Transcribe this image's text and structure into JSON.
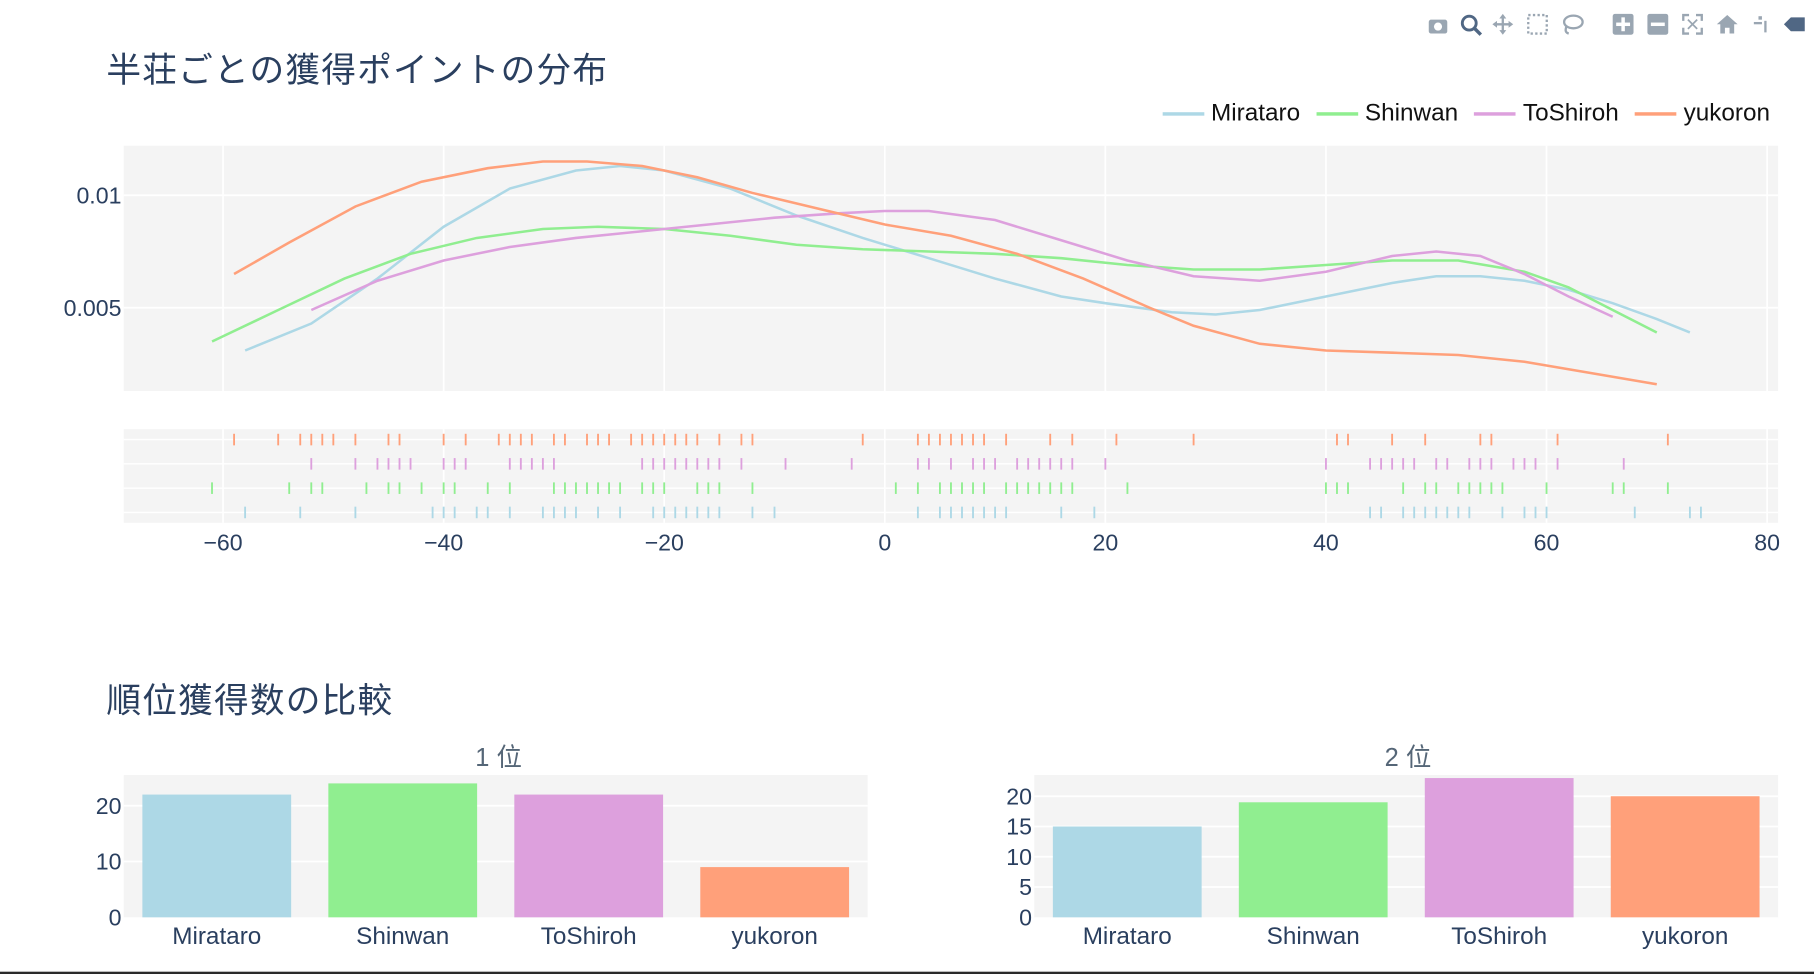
{
  "title1": "半荘ごとの獲得ポイントの分布",
  "title2": "順位獲得数の比較",
  "players": [
    "Mirataro",
    "Shinwan",
    "ToShiroh",
    "yukoron"
  ],
  "colors": {
    "Mirataro": "#add8e6",
    "Shinwan": "#90ee90",
    "ToShiroh": "#dda0dd",
    "yukoron": "#ffa07a"
  },
  "modebar_icons": [
    "camera-icon",
    "zoom-icon",
    "pan-icon",
    "box-select-icon",
    "lasso-icon",
    "zoom-in-icon",
    "zoom-out-icon",
    "autoscale-icon",
    "reset-axes-icon",
    "spike-lines-icon",
    "hover-closest-icon"
  ],
  "chart_data": [
    {
      "type": "line",
      "title": "半荘ごとの獲得ポイントの分布",
      "xlim": [
        -69,
        81
      ],
      "ylim": [
        0.0013,
        0.0122
      ],
      "xticks": [
        -60,
        -40,
        -20,
        0,
        20,
        40,
        60,
        80
      ],
      "xtick_labels": [
        "−60",
        "−40",
        "−20",
        "0",
        "20",
        "40",
        "60",
        "80"
      ],
      "yticks": [
        0.005,
        0.01
      ],
      "ytick_labels": [
        "0.005",
        "0.01"
      ],
      "grid": true,
      "legend_placement": "top-right",
      "series": [
        {
          "name": "Mirataro",
          "x": [
            -58,
            -52,
            -46,
            -40,
            -34,
            -28,
            -24,
            -20,
            -14,
            -8,
            -2,
            4,
            10,
            16,
            20,
            26,
            30,
            34,
            40,
            46,
            50,
            54,
            58,
            62,
            66,
            70,
            73
          ],
          "y": [
            0.0031,
            0.0043,
            0.0063,
            0.0086,
            0.0103,
            0.0111,
            0.0113,
            0.0111,
            0.0103,
            0.0091,
            0.0081,
            0.0072,
            0.0063,
            0.0055,
            0.0052,
            0.0048,
            0.0047,
            0.0049,
            0.0055,
            0.0061,
            0.0064,
            0.0064,
            0.0062,
            0.0058,
            0.0052,
            0.0045,
            0.0039
          ]
        },
        {
          "name": "Shinwan",
          "x": [
            -61,
            -55,
            -49,
            -43,
            -37,
            -31,
            -26,
            -20,
            -14,
            -8,
            -2,
            4,
            10,
            16,
            22,
            28,
            34,
            40,
            46,
            52,
            58,
            62,
            66,
            70
          ],
          "y": [
            0.0035,
            0.0049,
            0.0063,
            0.0074,
            0.0081,
            0.0085,
            0.0086,
            0.0085,
            0.0082,
            0.0078,
            0.0076,
            0.0075,
            0.0074,
            0.0072,
            0.0069,
            0.0067,
            0.0067,
            0.0069,
            0.0071,
            0.0071,
            0.0066,
            0.0059,
            0.0049,
            0.0039
          ]
        },
        {
          "name": "ToShiroh",
          "x": [
            -52,
            -46,
            -40,
            -34,
            -28,
            -22,
            -16,
            -10,
            -4,
            0,
            4,
            10,
            16,
            22,
            28,
            34,
            40,
            46,
            50,
            54,
            58,
            62,
            66
          ],
          "y": [
            0.0049,
            0.0062,
            0.0071,
            0.0077,
            0.0081,
            0.0084,
            0.0087,
            0.009,
            0.0092,
            0.0093,
            0.0093,
            0.0089,
            0.008,
            0.0071,
            0.0064,
            0.0062,
            0.0066,
            0.0073,
            0.0075,
            0.0073,
            0.0065,
            0.0055,
            0.0046
          ]
        },
        {
          "name": "yukoron",
          "x": [
            -59,
            -54,
            -48,
            -42,
            -36,
            -31,
            -27,
            -22,
            -17,
            -12,
            -6,
            0,
            6,
            12,
            18,
            24,
            28,
            34,
            40,
            46,
            52,
            58,
            64,
            70
          ],
          "y": [
            0.0065,
            0.0079,
            0.0095,
            0.0106,
            0.0112,
            0.0115,
            0.0115,
            0.0113,
            0.0108,
            0.0101,
            0.0094,
            0.0087,
            0.0082,
            0.0074,
            0.0063,
            0.005,
            0.0042,
            0.0034,
            0.0031,
            0.003,
            0.0029,
            0.0026,
            0.0021,
            0.0016
          ]
        }
      ],
      "rug": [
        {
          "name": "yukoron",
          "x": [
            -59,
            -55,
            -53,
            -52,
            -51,
            -50,
            -48,
            -45,
            -44,
            -40,
            -38,
            -35,
            -34,
            -33,
            -32,
            -30,
            -29,
            -27,
            -26,
            -25,
            -23,
            -22,
            -21,
            -20,
            -19,
            -18,
            -17,
            -15,
            -13,
            -12,
            -2,
            3,
            4,
            5,
            6,
            7,
            8,
            9,
            11,
            15,
            17,
            21,
            28,
            41,
            42,
            46,
            49,
            54,
            55,
            61,
            71
          ]
        },
        {
          "name": "ToShiroh",
          "x": [
            -52,
            -48,
            -46,
            -45,
            -44,
            -43,
            -40,
            -39,
            -38,
            -34,
            -33,
            -32,
            -31,
            -30,
            -22,
            -21,
            -20,
            -19,
            -18,
            -17,
            -16,
            -15,
            -13,
            -9,
            -3,
            3,
            4,
            6,
            8,
            9,
            10,
            12,
            13,
            14,
            15,
            16,
            17,
            20,
            40,
            44,
            45,
            46,
            47,
            48,
            50,
            51,
            53,
            54,
            55,
            57,
            58,
            59,
            61,
            67
          ]
        },
        {
          "name": "Shinwan",
          "x": [
            -61,
            -54,
            -52,
            -51,
            -47,
            -45,
            -44,
            -42,
            -40,
            -39,
            -36,
            -34,
            -30,
            -29,
            -28,
            -27,
            -26,
            -25,
            -24,
            -22,
            -21,
            -20,
            -17,
            -16,
            -15,
            -12,
            1,
            3,
            5,
            6,
            7,
            8,
            9,
            11,
            12,
            13,
            14,
            15,
            16,
            17,
            22,
            40,
            41,
            42,
            47,
            49,
            50,
            52,
            53,
            54,
            55,
            56,
            60,
            66,
            67,
            71
          ]
        },
        {
          "name": "Mirataro",
          "x": [
            -58,
            -53,
            -48,
            -41,
            -40,
            -39,
            -37,
            -36,
            -34,
            -31,
            -30,
            -29,
            -28,
            -26,
            -24,
            -21,
            -20,
            -19,
            -18,
            -17,
            -16,
            -15,
            -12,
            -10,
            3,
            5,
            6,
            7,
            8,
            9,
            10,
            11,
            16,
            19,
            44,
            45,
            47,
            48,
            49,
            50,
            51,
            52,
            53,
            56,
            58,
            59,
            60,
            68,
            73,
            74
          ]
        }
      ]
    },
    {
      "type": "bar",
      "title": "1 位",
      "categories": [
        "Mirataro",
        "Shinwan",
        "ToShiroh",
        "yukoron"
      ],
      "values": [
        22,
        24,
        22,
        9
      ],
      "ylim": [
        0,
        25.5
      ],
      "yticks": [
        0,
        10,
        20
      ]
    },
    {
      "type": "bar",
      "title": "2 位",
      "categories": [
        "Mirataro",
        "Shinwan",
        "ToShiroh",
        "yukoron"
      ],
      "values": [
        15,
        19,
        23,
        20
      ],
      "ylim": [
        0,
        23.5
      ],
      "yticks": [
        0,
        5,
        10,
        15,
        20
      ]
    }
  ]
}
